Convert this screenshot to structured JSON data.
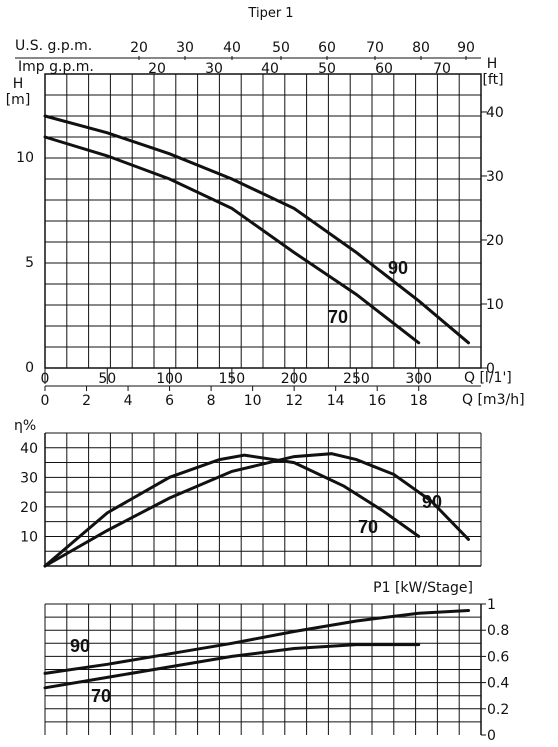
{
  "title": "Tiper 1",
  "colors": {
    "curve": "#111111",
    "grid": "#111111",
    "background": "#ffffff"
  },
  "chart_data": [
    {
      "type": "line",
      "name": "head-curve",
      "ylabel": "H",
      "ylabel_unit": "[m]",
      "ylabel_right": "H",
      "ylabel_right_unit": "[ft]",
      "xlabel_lph": "Q [l/1']",
      "xlabel_m3h": "Q [m3/h]",
      "xlim_lph": [
        0,
        350
      ],
      "ylim": [
        0,
        14
      ],
      "top_axis_us_label": "U.S. g.p.m.",
      "top_axis_imp_label": "Imp g.p.m.",
      "us_gpm_ticks": [
        "20",
        "30",
        "40",
        "50",
        "60",
        "70",
        "80",
        "90"
      ],
      "imp_gpm_ticks": [
        "20",
        "30",
        "40",
        "50",
        "60",
        "70"
      ],
      "left_ticks": [
        "0",
        "5",
        "10"
      ],
      "right_ft_ticks": [
        "0",
        "10",
        "20",
        "30",
        "40"
      ],
      "x_lph_ticks": [
        "0",
        "50",
        "100",
        "150",
        "200",
        "250",
        "300"
      ],
      "x_m3h_ticks": [
        "0",
        "2",
        "4",
        "6",
        "8",
        "10",
        "12",
        "14",
        "16",
        "18"
      ],
      "grid": true,
      "series": [
        {
          "name": "90",
          "x": [
            0,
            50,
            100,
            150,
            200,
            250,
            300,
            340
          ],
          "y": [
            12.0,
            11.2,
            10.2,
            9.0,
            7.6,
            5.5,
            3.2,
            1.2
          ]
        },
        {
          "name": "70",
          "x": [
            0,
            50,
            100,
            150,
            200,
            250,
            300
          ],
          "y": [
            11.0,
            10.1,
            9.0,
            7.6,
            5.5,
            3.5,
            1.2
          ]
        }
      ]
    },
    {
      "type": "line",
      "name": "efficiency-curve",
      "ylabel": "η%",
      "ylim": [
        0,
        45
      ],
      "y_ticks": [
        "10",
        "20",
        "30",
        "40"
      ],
      "grid": true,
      "series": [
        {
          "name": "90",
          "x": [
            0,
            50,
            100,
            150,
            200,
            230,
            250,
            280,
            310,
            340
          ],
          "y": [
            0,
            12,
            23,
            32,
            37,
            38,
            36,
            31,
            22,
            9
          ]
        },
        {
          "name": "70",
          "x": [
            0,
            50,
            100,
            140,
            160,
            200,
            240,
            270,
            300
          ],
          "y": [
            0,
            18,
            30,
            36,
            37.5,
            35,
            27,
            19,
            10
          ]
        }
      ]
    },
    {
      "type": "line",
      "name": "power-curve",
      "ylabel": "P1 [kW/Stage]",
      "ylim": [
        0,
        1
      ],
      "y_ticks": [
        "0",
        "0.2",
        "0.4",
        "0.6",
        "0.8",
        "1"
      ],
      "grid": true,
      "series": [
        {
          "name": "90",
          "x": [
            0,
            50,
            100,
            150,
            200,
            250,
            300,
            340
          ],
          "y": [
            0.47,
            0.54,
            0.62,
            0.7,
            0.79,
            0.87,
            0.93,
            0.95
          ]
        },
        {
          "name": "70",
          "x": [
            0,
            50,
            100,
            150,
            200,
            250,
            300
          ],
          "y": [
            0.36,
            0.44,
            0.52,
            0.6,
            0.66,
            0.69,
            0.69
          ]
        }
      ]
    }
  ]
}
